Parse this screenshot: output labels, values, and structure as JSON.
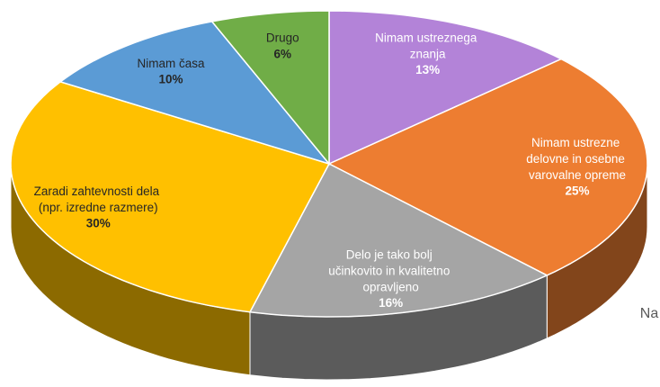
{
  "chart_data": {
    "type": "pie",
    "categories": [
      "Nimam ustreznega znanja",
      "Nimam ustrezne delovne in osebne varovalne opreme",
      "Delo je tako bolj učinkovito in kvalitetno opravljeno",
      "Zaradi zahtevnosti dela (npr. izredne razmere)",
      "Nimam časa",
      "Drugo"
    ],
    "values": [
      13,
      25,
      16,
      30,
      10,
      6
    ],
    "value_labels": [
      "13%",
      "25%",
      "16%",
      "30%",
      "10%",
      "6%"
    ],
    "colors": [
      "#b383d8",
      "#ed7d31",
      "#a5a5a5",
      "#ffc000",
      "#5b9bd5",
      "#70ad47"
    ],
    "annotations": [
      "Na"
    ]
  }
}
